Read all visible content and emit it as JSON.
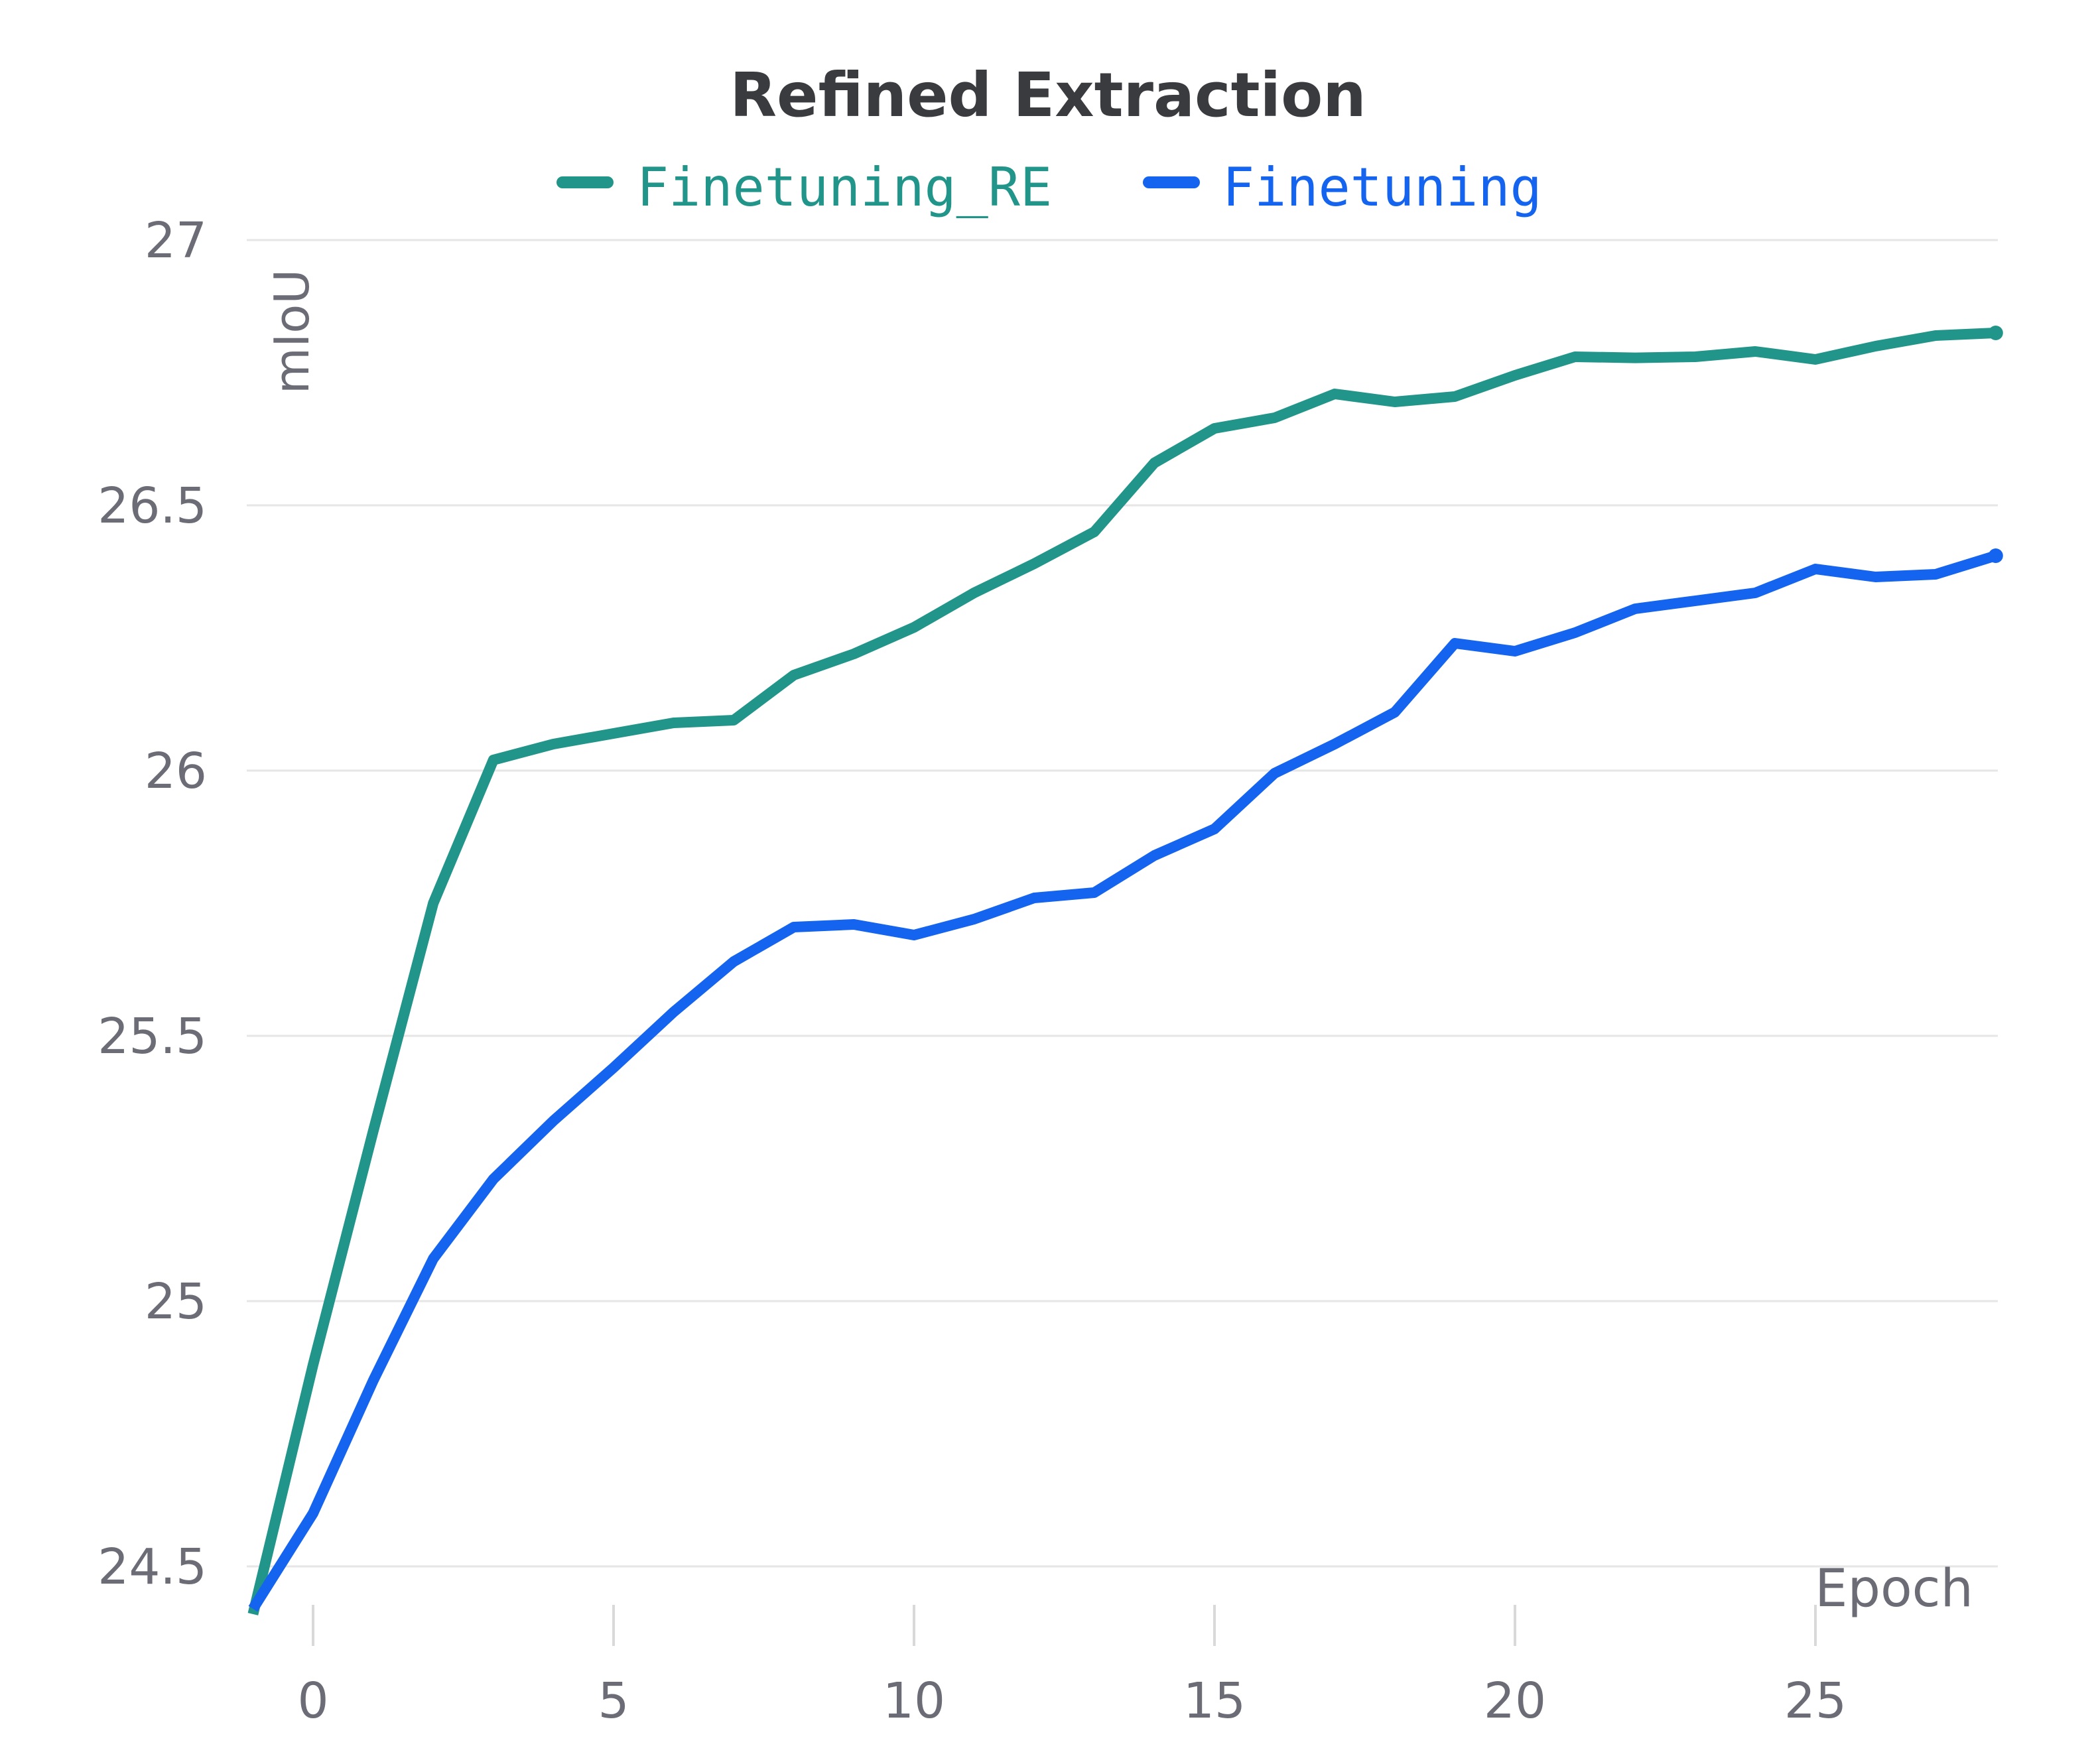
{
  "chart_data": {
    "type": "line",
    "title": "Refined Extraction",
    "xlabel": "Epoch",
    "ylabel": "mIoU",
    "xlim": [
      -1,
      28
    ],
    "ylim": [
      24.4,
      27
    ],
    "x_ticks": [
      "0",
      "5",
      "10",
      "15",
      "20",
      "25"
    ],
    "y_ticks": [
      "24.5",
      "25",
      "25.5",
      "26",
      "26.5",
      "27"
    ],
    "grid": "horizontal",
    "legend_position": "top-center",
    "x": [
      -1,
      0,
      1,
      2,
      3,
      4,
      5,
      6,
      7,
      8,
      9,
      10,
      11,
      12,
      13,
      14,
      15,
      16,
      17,
      18,
      19,
      20,
      21,
      22,
      23,
      24,
      25,
      26,
      27,
      28
    ],
    "series": [
      {
        "name": "Finetuning_RE",
        "color": "#22958a",
        "values": [
          24.41,
          24.88,
          25.32,
          25.75,
          26.02,
          26.05,
          26.07,
          26.09,
          26.095,
          26.18,
          26.22,
          26.27,
          26.335,
          26.39,
          26.45,
          26.58,
          26.645,
          26.665,
          26.71,
          26.695,
          26.705,
          26.745,
          26.78,
          26.778,
          26.78,
          26.79,
          26.775,
          26.8,
          26.82,
          26.825
        ]
      },
      {
        "name": "Finetuning",
        "color": "#1464f0",
        "values": [
          24.42,
          24.6,
          24.85,
          25.08,
          25.23,
          25.34,
          25.44,
          25.545,
          25.64,
          25.705,
          25.71,
          25.69,
          25.72,
          25.76,
          25.77,
          25.84,
          25.89,
          25.995,
          26.05,
          26.11,
          26.24,
          26.225,
          26.26,
          26.305,
          26.32,
          26.335,
          26.38,
          26.365,
          26.37,
          26.405
        ]
      }
    ]
  }
}
